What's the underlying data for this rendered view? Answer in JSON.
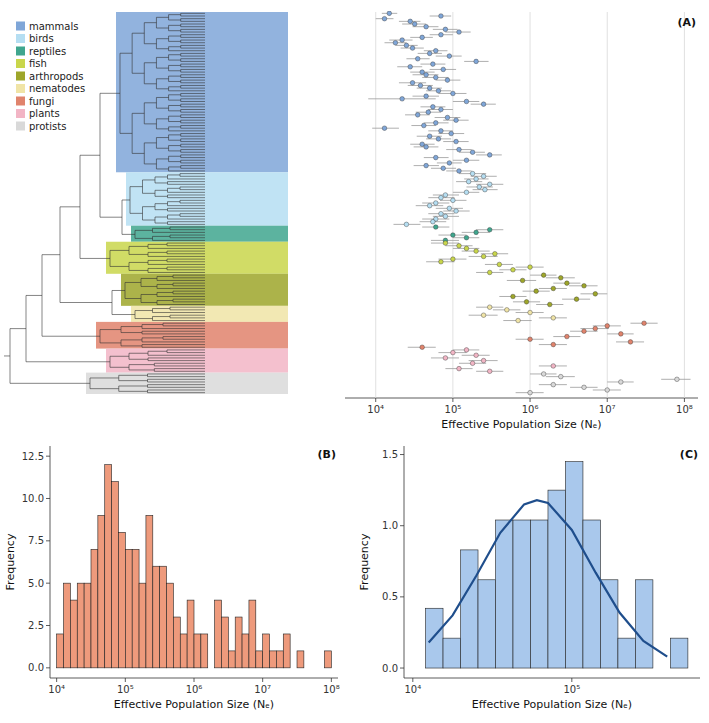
{
  "chart_data": [
    {
      "type": "scatter",
      "title": "(A)",
      "log": "x",
      "grid": true,
      "legend": "top-left",
      "xlabel": "Effective Population Size (Nₑ)",
      "xlim": [
        4000,
        150000000
      ],
      "xticks": [
        {
          "value": 10000,
          "label": "10⁴"
        },
        {
          "value": 100000,
          "label": "10⁵"
        },
        {
          "value": 1000000,
          "label": "10⁶"
        },
        {
          "value": 10000000,
          "label": "10⁷"
        },
        {
          "value": 100000000,
          "label": "10⁸"
        }
      ],
      "series": [
        {
          "name": "mammals",
          "color": "#7fa6d8",
          "values": [
            15000,
            70000,
            13000,
            28000,
            32000,
            45000,
            80000,
            120000,
            70000,
            40000,
            22000,
            18000,
            25000,
            30000,
            60000,
            50000,
            90000,
            35000,
            200000,
            55000,
            28000,
            75000,
            40000,
            45000,
            60000,
            85000,
            30000,
            38000,
            50000,
            65000,
            100000,
            45000,
            22000,
            150000,
            250000,
            55000,
            70000,
            48000,
            35000,
            85000,
            110000,
            60000,
            42000,
            13000,
            70000,
            95000,
            50000,
            65000,
            110000,
            40000,
            45000,
            120000,
            180000,
            300000,
            60000,
            150000,
            90000,
            45000,
            75000,
            120000
          ],
          "lower": [
            12000,
            50000,
            10000,
            20000,
            22000,
            30000,
            55000,
            80000,
            50000,
            28000,
            15000,
            13000,
            18000,
            21000,
            42000,
            35000,
            60000,
            25000,
            140000,
            38000,
            19000,
            50000,
            28000,
            30000,
            40000,
            60000,
            20000,
            26000,
            34000,
            45000,
            65000,
            30000,
            8000,
            100000,
            170000,
            38000,
            48000,
            33000,
            24000,
            58000,
            75000,
            42000,
            29000,
            9000,
            48000,
            65000,
            34000,
            45000,
            75000,
            28000,
            31000,
            82000,
            120000,
            200000,
            42000,
            100000,
            62000,
            31000,
            52000,
            82000
          ],
          "upper": [
            19000,
            95000,
            17000,
            38000,
            45000,
            65000,
            115000,
            170000,
            100000,
            55000,
            30000,
            25000,
            35000,
            42000,
            85000,
            72000,
            130000,
            50000,
            290000,
            80000,
            40000,
            110000,
            58000,
            65000,
            88000,
            125000,
            45000,
            55000,
            72000,
            95000,
            150000,
            66000,
            60000,
            220000,
            360000,
            80000,
            100000,
            70000,
            50000,
            125000,
            160000,
            88000,
            60000,
            20000,
            100000,
            140000,
            72000,
            95000,
            160000,
            58000,
            65000,
            175000,
            260000,
            430000,
            88000,
            220000,
            130000,
            66000,
            110000,
            175000
          ]
        },
        {
          "name": "birds",
          "color": "#b5def2",
          "values": [
            180000,
            250000,
            200000,
            160000,
            300000,
            220000,
            260000,
            150000,
            80000,
            70000,
            100000,
            60000,
            50000,
            90000,
            110000,
            70000,
            80000,
            60000,
            55000,
            25000
          ],
          "lower": [
            120000,
            170000,
            140000,
            110000,
            200000,
            150000,
            180000,
            100000,
            55000,
            48000,
            68000,
            40000,
            33000,
            60000,
            75000,
            48000,
            55000,
            40000,
            37000,
            17000
          ],
          "upper": [
            270000,
            370000,
            290000,
            240000,
            450000,
            330000,
            380000,
            220000,
            120000,
            105000,
            150000,
            90000,
            75000,
            135000,
            165000,
            105000,
            120000,
            90000,
            82000,
            38000
          ]
        },
        {
          "name": "reptiles",
          "color": "#3fa68e",
          "values": [
            60000,
            300000,
            200000,
            100000,
            150000,
            80000
          ],
          "lower": [
            40000,
            200000,
            130000,
            65000,
            100000,
            52000
          ],
          "upper": [
            90000,
            450000,
            300000,
            150000,
            220000,
            120000
          ]
        },
        {
          "name": "fish",
          "color": "#c9d64b",
          "values": [
            80000,
            120000,
            150000,
            200000,
            350000,
            250000,
            100000,
            70000,
            400000,
            1000000,
            600000,
            300000
          ],
          "lower": [
            52000,
            80000,
            100000,
            130000,
            230000,
            160000,
            65000,
            45000,
            260000,
            650000,
            400000,
            200000
          ],
          "upper": [
            120000,
            180000,
            220000,
            300000,
            520000,
            380000,
            150000,
            105000,
            600000,
            1500000,
            900000,
            450000
          ]
        },
        {
          "name": "arthropods",
          "color": "#9ea62a",
          "values": [
            1500000,
            2500000,
            800000,
            3000000,
            5000000,
            2000000,
            1200000,
            7000000,
            600000,
            4000000,
            900000,
            1800000
          ],
          "lower": [
            1000000,
            1600000,
            500000,
            2000000,
            3200000,
            1300000,
            800000,
            4500000,
            400000,
            2600000,
            600000,
            1200000
          ],
          "upper": [
            2200000,
            3800000,
            1200000,
            4500000,
            7500000,
            3000000,
            1800000,
            10000000,
            900000,
            6000000,
            1350000,
            2700000
          ]
        },
        {
          "name": "nematodes",
          "color": "#f0e4a6",
          "values": [
            300000,
            500000,
            1000000,
            250000,
            2000000,
            700000
          ],
          "lower": [
            200000,
            330000,
            650000,
            160000,
            1300000,
            450000
          ],
          "upper": [
            450000,
            750000,
            1500000,
            380000,
            3000000,
            1050000
          ]
        },
        {
          "name": "fungi",
          "color": "#e0836c",
          "values": [
            30000000,
            10000000,
            7000000,
            5000000,
            15000000,
            3000000,
            1000000,
            20000000,
            2000000,
            40000
          ],
          "lower": [
            20000000,
            6500000,
            4500000,
            3300000,
            10000000,
            2000000,
            650000,
            13000000,
            1300000,
            26000
          ],
          "upper": [
            45000000,
            15000000,
            10500000,
            7500000,
            22000000,
            4500000,
            1500000,
            30000000,
            3000000,
            60000
          ]
        },
        {
          "name": "plants",
          "color": "#f2b5c5",
          "values": [
            150000,
            100000,
            200000,
            80000,
            250000,
            180000,
            2000000,
            120000,
            300000
          ],
          "lower": [
            100000,
            65000,
            130000,
            52000,
            160000,
            120000,
            1300000,
            80000,
            200000
          ],
          "upper": [
            220000,
            150000,
            300000,
            120000,
            380000,
            270000,
            3000000,
            180000,
            450000
          ]
        },
        {
          "name": "protists",
          "color": "#d9d9d9",
          "values": [
            1500000,
            2500000,
            80000000,
            15000000,
            2000000,
            5000000,
            10000000,
            1000000
          ],
          "lower": [
            1000000,
            1600000,
            50000000,
            10000000,
            1300000,
            3300000,
            6500000,
            650000
          ],
          "upper": [
            2200000,
            3800000,
            120000000,
            22000000,
            3000000,
            7500000,
            15000000,
            1500000
          ]
        }
      ]
    },
    {
      "type": "histogram",
      "title": "(B)",
      "log": "x",
      "grid": false,
      "color": "#ee9a7c",
      "xlabel": "Effective Population Size (Nₑ)",
      "ylabel": "Frequency",
      "bins": [
        10000,
        12589,
        15849,
        19953,
        25119,
        31623,
        39811,
        50119,
        63096,
        79433,
        100000,
        125893,
        158489,
        199526,
        251189,
        316228,
        398107,
        501187,
        630957,
        794328,
        1000000,
        1258925,
        1584893,
        1995262,
        2511886,
        3162278,
        3981072,
        5011872,
        6309573,
        7943282,
        10000000,
        12589254,
        15848932,
        19952623,
        25118864,
        31622777,
        39810717,
        50118723,
        63095734,
        79432823,
        100000000
      ],
      "values": [
        2,
        5,
        4,
        5,
        5,
        7,
        9,
        12,
        11,
        8,
        7,
        7,
        5,
        9,
        6,
        6,
        5,
        3,
        2,
        4,
        2,
        2,
        0,
        4,
        3,
        1,
        3,
        2,
        4,
        1,
        2,
        1,
        1,
        2,
        0,
        1,
        0,
        0,
        0,
        1
      ],
      "xlim": [
        8000,
        125000000
      ],
      "xticks": [
        {
          "value": 10000,
          "label": "10⁴"
        },
        {
          "value": 100000,
          "label": "10⁵"
        },
        {
          "value": 1000000,
          "label": "10⁶"
        },
        {
          "value": 10000000,
          "label": "10⁷"
        },
        {
          "value": 100000000,
          "label": "10⁸"
        }
      ],
      "ylim": [
        -0.6,
        13.1
      ],
      "yticks": [
        {
          "value": 0,
          "label": "0.0"
        },
        2.5,
        {
          "value": 5,
          "label": "5.0"
        },
        7.5,
        {
          "value": 10,
          "label": "10.0"
        },
        12.5
      ]
    },
    {
      "type": "histogram",
      "title": "(C)",
      "log": "x",
      "grid": false,
      "color": "#a9c8ec",
      "xlabel": "Effective Population Size (Nₑ)",
      "ylabel": "Frequency",
      "bins": [
        12023,
        15488,
        19953,
        25704,
        33113,
        42658,
        54954,
        70795,
        91201,
        117490,
        151356,
        194984,
        251189,
        323594,
        416869,
        537032
      ],
      "values": [
        0.42,
        0.21,
        0.83,
        0.62,
        1.04,
        1.04,
        1.04,
        1.25,
        1.45,
        1.04,
        0.62,
        0.21,
        0.62,
        0,
        0.21
      ],
      "curve": {
        "type": "line",
        "color": "#1f4e8c",
        "x": [
          12589,
          17783,
          25119,
          35481,
          50119,
          60256,
          70795,
          100000,
          141254,
          199526,
          281838,
          398107
        ],
        "values": [
          0.18,
          0.37,
          0.65,
          0.95,
          1.15,
          1.18,
          1.16,
          0.97,
          0.67,
          0.39,
          0.19,
          0.08
        ]
      },
      "xlim": [
        8800,
        640000
      ],
      "xticks": [
        {
          "value": 10000,
          "label": "10⁴"
        },
        {
          "value": 100000,
          "label": "10⁵"
        }
      ],
      "ylim": [
        -0.07,
        1.56
      ],
      "yticks": [
        {
          "value": 0,
          "label": "0.0"
        },
        0.5,
        {
          "value": 1,
          "label": "1.0"
        },
        1.5
      ]
    }
  ]
}
